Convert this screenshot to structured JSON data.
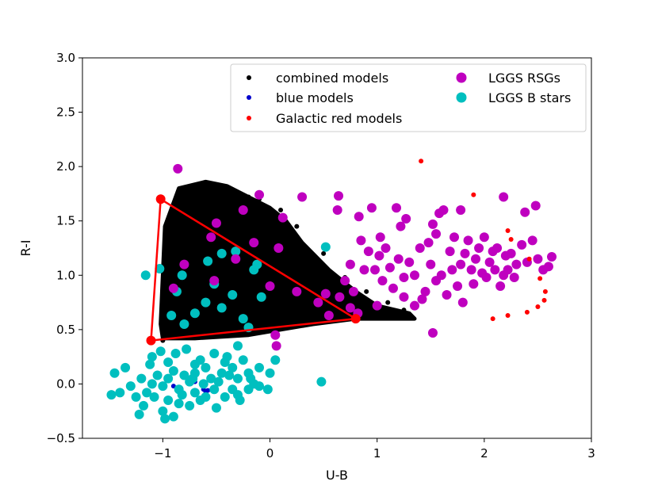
{
  "chart_data": {
    "type": "scatter",
    "xlabel": "U-B",
    "ylabel": "R-I",
    "xlim": [
      -1.75,
      3.0
    ],
    "ylim": [
      -0.5,
      3.0
    ],
    "xticks": [
      -1,
      0,
      1,
      2,
      3
    ],
    "xtick_labels": [
      "−1",
      "0",
      "1",
      "2",
      "3"
    ],
    "yticks": [
      -0.5,
      0.0,
      0.5,
      1.0,
      1.5,
      2.0,
      2.5,
      3.0
    ],
    "ytick_labels": [
      "−0.5",
      "0.0",
      "0.5",
      "1.0",
      "1.5",
      "2.0",
      "2.5",
      "3.0"
    ],
    "legend_position": "top-right",
    "legend": [
      {
        "label": "combined models",
        "color": "#000000",
        "marker": "small"
      },
      {
        "label": "blue models",
        "color": "#0000cc",
        "marker": "small"
      },
      {
        "label": "Galactic red models",
        "color": "#ff0000",
        "marker": "small"
      },
      {
        "label": "LGGS RSGs",
        "color": "#bf00bf",
        "marker": "large"
      },
      {
        "label": "LGGS B stars",
        "color": "#00bfbf",
        "marker": "large"
      }
    ],
    "series": [
      {
        "name": "combined models",
        "color": "#000000",
        "marker": "small",
        "description": "dense filled region",
        "envelope": [
          [
            -1.02,
            0.55
          ],
          [
            -0.98,
            1.45
          ],
          [
            -0.85,
            1.8
          ],
          [
            -0.6,
            1.86
          ],
          [
            -0.4,
            1.82
          ],
          [
            -0.2,
            1.72
          ],
          [
            0.0,
            1.62
          ],
          [
            0.15,
            1.5
          ],
          [
            0.3,
            1.3
          ],
          [
            0.55,
            1.05
          ],
          [
            0.8,
            0.85
          ],
          [
            1.0,
            0.72
          ],
          [
            1.3,
            0.65
          ],
          [
            1.35,
            0.6
          ],
          [
            1.2,
            0.6
          ],
          [
            0.8,
            0.6
          ],
          [
            0.4,
            0.55
          ],
          [
            -0.2,
            0.45
          ],
          [
            -0.7,
            0.42
          ],
          [
            -1.0,
            0.42
          ]
        ],
        "points": [
          [
            -1.0,
            0.4
          ],
          [
            -0.6,
            1.85
          ],
          [
            -0.4,
            1.8
          ],
          [
            -0.1,
            1.7
          ],
          [
            0.1,
            1.6
          ],
          [
            0.25,
            1.45
          ],
          [
            0.5,
            1.2
          ],
          [
            0.7,
            0.98
          ],
          [
            0.9,
            0.85
          ],
          [
            1.1,
            0.75
          ],
          [
            1.25,
            0.68
          ],
          [
            1.3,
            0.62
          ],
          [
            -0.2,
            1.72
          ],
          [
            0.05,
            1.55
          ]
        ]
      },
      {
        "name": "blue models",
        "color": "#0000cc",
        "marker": "small",
        "points": [
          [
            -0.6,
            -0.07
          ],
          [
            -0.62,
            -0.05
          ],
          [
            -0.58,
            -0.06
          ],
          [
            -0.9,
            -0.02
          ],
          [
            -1.0,
            0.0
          ],
          [
            -0.7,
            0.02
          ]
        ]
      },
      {
        "name": "Galactic red models",
        "color": "#ff0000",
        "marker": "small",
        "points": [
          [
            1.41,
            2.05
          ],
          [
            1.9,
            1.74
          ],
          [
            2.22,
            1.41
          ],
          [
            2.25,
            1.33
          ],
          [
            2.42,
            1.15
          ],
          [
            2.52,
            0.97
          ],
          [
            2.57,
            0.85
          ],
          [
            2.56,
            0.77
          ],
          [
            2.5,
            0.71
          ],
          [
            2.4,
            0.66
          ],
          [
            2.22,
            0.63
          ],
          [
            2.08,
            0.6
          ]
        ]
      },
      {
        "name": "Triangle boundary",
        "color": "#ff0000",
        "type": "polygon",
        "points": [
          [
            -1.02,
            1.7
          ],
          [
            0.8,
            0.6
          ],
          [
            -1.11,
            0.4
          ]
        ]
      },
      {
        "name": "LGGS RSGs",
        "color": "#bf00bf",
        "marker": "large",
        "points": [
          [
            -0.86,
            1.98
          ],
          [
            -0.1,
            1.74
          ],
          [
            0.3,
            1.72
          ],
          [
            0.64,
            1.73
          ],
          [
            -0.25,
            1.6
          ],
          [
            -0.5,
            1.48
          ],
          [
            0.12,
            1.53
          ],
          [
            -0.55,
            1.35
          ],
          [
            -0.15,
            1.3
          ],
          [
            0.08,
            1.25
          ],
          [
            -0.32,
            1.15
          ],
          [
            -0.8,
            1.1
          ],
          [
            -0.52,
            0.95
          ],
          [
            -0.9,
            0.88
          ],
          [
            0.0,
            0.9
          ],
          [
            0.25,
            0.85
          ],
          [
            0.52,
            0.83
          ],
          [
            0.65,
            0.8
          ],
          [
            0.45,
            0.75
          ],
          [
            0.75,
            0.7
          ],
          [
            0.82,
            0.65
          ],
          [
            1.0,
            0.72
          ],
          [
            0.55,
            0.63
          ],
          [
            0.05,
            0.45
          ],
          [
            0.06,
            0.35
          ],
          [
            0.63,
            1.6
          ],
          [
            0.83,
            1.54
          ],
          [
            0.95,
            1.62
          ],
          [
            0.85,
            1.32
          ],
          [
            0.92,
            1.22
          ],
          [
            0.88,
            1.05
          ],
          [
            0.75,
            1.1
          ],
          [
            0.7,
            0.95
          ],
          [
            0.78,
            0.85
          ],
          [
            1.03,
            1.35
          ],
          [
            1.08,
            1.25
          ],
          [
            1.22,
            1.45
          ],
          [
            1.18,
            1.62
          ],
          [
            1.27,
            1.52
          ],
          [
            1.02,
            1.18
          ],
          [
            1.12,
            1.07
          ],
          [
            1.2,
            1.15
          ],
          [
            1.25,
            0.98
          ],
          [
            1.3,
            1.12
          ],
          [
            1.35,
            1.0
          ],
          [
            1.4,
            1.25
          ],
          [
            1.45,
            0.85
          ],
          [
            1.5,
            1.1
          ],
          [
            1.55,
            0.95
          ],
          [
            1.6,
            1.0
          ],
          [
            1.65,
            0.82
          ],
          [
            1.7,
            1.05
          ],
          [
            1.48,
            1.3
          ],
          [
            1.52,
            1.47
          ],
          [
            1.55,
            1.38
          ],
          [
            1.62,
            1.6
          ],
          [
            1.68,
            1.22
          ],
          [
            1.72,
            1.35
          ],
          [
            1.75,
            0.9
          ],
          [
            1.78,
            1.1
          ],
          [
            1.8,
            0.75
          ],
          [
            1.82,
            1.2
          ],
          [
            1.85,
            1.32
          ],
          [
            1.88,
            1.05
          ],
          [
            1.9,
            0.92
          ],
          [
            1.92,
            1.15
          ],
          [
            1.95,
            1.25
          ],
          [
            1.98,
            1.02
          ],
          [
            2.0,
            1.35
          ],
          [
            2.02,
            0.98
          ],
          [
            2.05,
            1.12
          ],
          [
            2.08,
            1.22
          ],
          [
            2.1,
            1.05
          ],
          [
            2.12,
            1.25
          ],
          [
            2.15,
            0.9
          ],
          [
            2.18,
            1.0
          ],
          [
            2.2,
            1.18
          ],
          [
            2.22,
            1.05
          ],
          [
            2.25,
            1.2
          ],
          [
            2.28,
            0.98
          ],
          [
            2.3,
            1.1
          ],
          [
            2.35,
            1.28
          ],
          [
            2.4,
            1.12
          ],
          [
            2.45,
            1.32
          ],
          [
            2.5,
            1.15
          ],
          [
            2.55,
            1.05
          ],
          [
            2.63,
            1.17
          ],
          [
            2.6,
            1.08
          ],
          [
            2.48,
            1.64
          ],
          [
            2.38,
            1.58
          ],
          [
            2.18,
            1.72
          ],
          [
            1.78,
            1.6
          ],
          [
            1.58,
            1.57
          ],
          [
            1.52,
            0.47
          ],
          [
            1.42,
            0.78
          ],
          [
            1.35,
            0.72
          ],
          [
            1.25,
            0.8
          ],
          [
            1.15,
            0.88
          ],
          [
            1.05,
            0.95
          ],
          [
            0.98,
            1.05
          ]
        ]
      },
      {
        "name": "LGGS B stars",
        "color": "#00bfbf",
        "marker": "large",
        "points": [
          [
            -1.16,
            1.0
          ],
          [
            -1.03,
            1.06
          ],
          [
            -0.82,
            1.0
          ],
          [
            -0.58,
            1.13
          ],
          [
            -0.45,
            1.2
          ],
          [
            -0.32,
            1.22
          ],
          [
            -0.15,
            1.05
          ],
          [
            -0.12,
            1.1
          ],
          [
            0.52,
            1.26
          ],
          [
            -0.87,
            0.85
          ],
          [
            -0.52,
            0.92
          ],
          [
            -0.35,
            0.82
          ],
          [
            -0.08,
            0.8
          ],
          [
            -0.45,
            0.7
          ],
          [
            -0.6,
            0.75
          ],
          [
            -0.7,
            0.65
          ],
          [
            -0.25,
            0.6
          ],
          [
            -0.2,
            0.52
          ],
          [
            -0.8,
            0.55
          ],
          [
            -0.92,
            0.63
          ],
          [
            -1.1,
            0.25
          ],
          [
            -0.95,
            0.2
          ],
          [
            -0.7,
            0.18
          ],
          [
            -0.4,
            0.25
          ],
          [
            -0.3,
            0.35
          ],
          [
            0.05,
            0.22
          ],
          [
            0.0,
            0.1
          ],
          [
            -0.1,
            0.15
          ],
          [
            -0.2,
            0.1
          ],
          [
            -0.3,
            0.05
          ],
          [
            -0.35,
            -0.05
          ],
          [
            -0.45,
            0.1
          ],
          [
            -0.55,
            0.05
          ],
          [
            -0.6,
            0.15
          ],
          [
            -0.7,
            0.1
          ],
          [
            -0.75,
            0.02
          ],
          [
            -0.8,
            0.08
          ],
          [
            -0.85,
            -0.05
          ],
          [
            -0.9,
            0.12
          ],
          [
            -0.95,
            0.05
          ],
          [
            -1.0,
            -0.02
          ],
          [
            -1.05,
            0.08
          ],
          [
            -1.1,
            0.0
          ],
          [
            -1.15,
            -0.08
          ],
          [
            -1.2,
            0.05
          ],
          [
            -1.25,
            -0.12
          ],
          [
            -1.3,
            -0.02
          ],
          [
            -1.35,
            0.15
          ],
          [
            -1.4,
            -0.08
          ],
          [
            -1.45,
            0.1
          ],
          [
            -1.48,
            -0.1
          ],
          [
            -1.22,
            -0.28
          ],
          [
            -1.0,
            -0.25
          ],
          [
            -0.9,
            -0.3
          ],
          [
            -0.75,
            -0.2
          ],
          [
            -0.65,
            -0.15
          ],
          [
            -0.5,
            -0.22
          ],
          [
            -0.42,
            -0.12
          ],
          [
            -0.3,
            -0.1
          ],
          [
            -0.2,
            -0.05
          ],
          [
            -0.1,
            -0.02
          ],
          [
            -0.02,
            -0.05
          ],
          [
            0.48,
            0.02
          ],
          [
            -1.12,
            0.18
          ],
          [
            -1.02,
            0.3
          ],
          [
            -0.88,
            0.28
          ],
          [
            -0.78,
            0.32
          ],
          [
            -0.65,
            0.22
          ],
          [
            -0.52,
            0.28
          ],
          [
            -0.42,
            0.2
          ],
          [
            -0.35,
            0.15
          ],
          [
            -0.25,
            0.22
          ],
          [
            -0.15,
            0.0
          ],
          [
            -0.95,
            -0.15
          ],
          [
            -0.82,
            -0.1
          ],
          [
            -0.7,
            -0.08
          ],
          [
            -0.6,
            -0.12
          ],
          [
            -1.08,
            -0.12
          ],
          [
            -1.18,
            -0.2
          ],
          [
            -0.98,
            -0.32
          ],
          [
            -0.85,
            -0.18
          ],
          [
            -0.72,
            0.05
          ],
          [
            -0.62,
            0.0
          ],
          [
            -0.52,
            -0.05
          ],
          [
            -0.48,
            0.02
          ],
          [
            -0.38,
            0.08
          ],
          [
            -0.28,
            -0.15
          ],
          [
            -0.18,
            0.05
          ]
        ]
      }
    ]
  }
}
